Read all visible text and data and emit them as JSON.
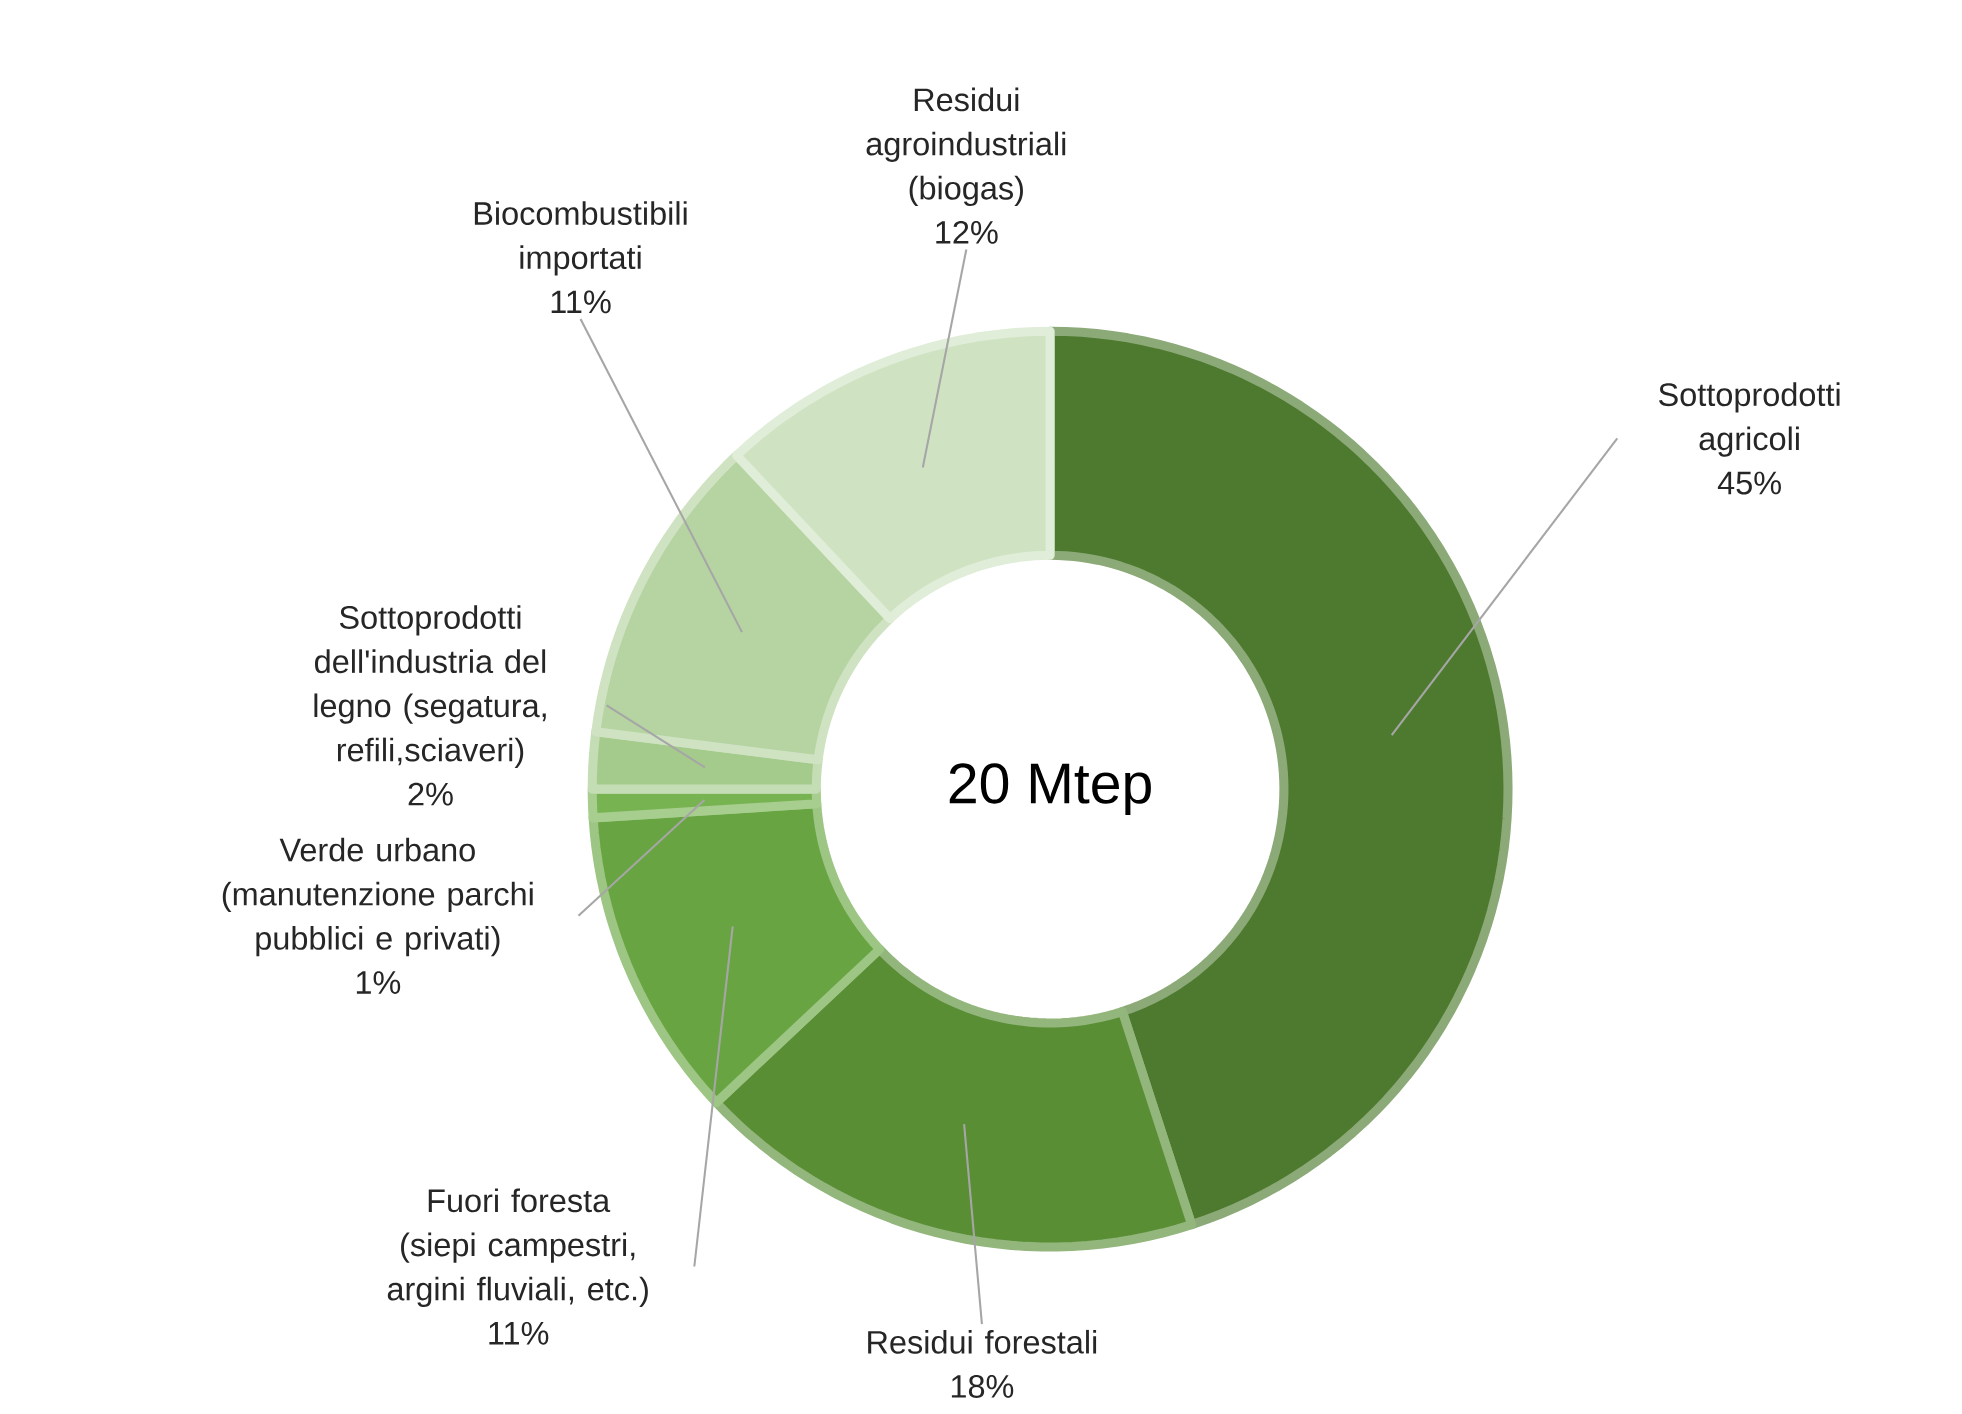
{
  "chart_data": {
    "type": "donut",
    "categories": [
      "Sottoprodotti agricoli",
      "Residui forestali",
      "Fuori foresta (siepi campestri, argini fluviali, etc.)",
      "Verde urbano (manutenzione parchi pubblici e privati)",
      "Sottoprodotti dell'industria del legno (segatura, refili,sciaveri)",
      "Biocombustibili importati",
      "Residui agroindustriali (biogas)"
    ],
    "values": [
      45,
      18,
      11,
      1,
      2,
      11,
      12
    ],
    "value_labels": [
      "45%",
      "18%",
      "11%",
      "1%",
      "2%",
      "11%",
      "12%"
    ],
    "colors": [
      "#4e7a2f",
      "#598e35",
      "#68a542",
      "#78b352",
      "#a4cb8c",
      "#b5d4a2",
      "#cfe3c3"
    ],
    "annotations": [
      "20 Mtep"
    ]
  }
}
